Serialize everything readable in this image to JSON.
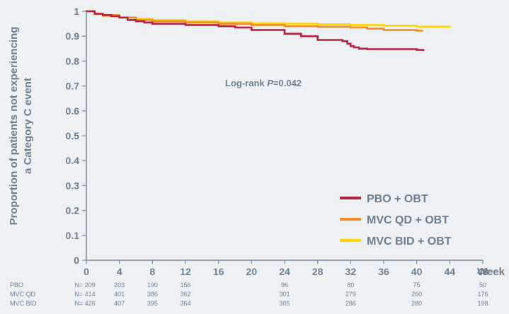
{
  "chart_data": {
    "type": "line",
    "step": true,
    "ylabel_lines": [
      "Proportion of patients not experiencing",
      "a Category C event"
    ],
    "xlabel": "Week",
    "xlim": [
      0,
      48
    ],
    "ylim": [
      0,
      1
    ],
    "x_ticks": [
      "0",
      "4",
      "8",
      "12",
      "16",
      "20",
      "24",
      "28",
      "32",
      "36",
      "40",
      "44",
      "48"
    ],
    "y_ticks": [
      "0",
      "0.1",
      "0.2",
      "0.3",
      "0.4",
      "0.5",
      "0.6",
      "0.7",
      "0.8",
      "0.9",
      "1"
    ],
    "annotation_prefix": "Log-rank ",
    "annotation_p": "P",
    "annotation_suffix": "=0.042",
    "legend_position": "bottom-right",
    "series": [
      {
        "name": "PBO + OBT",
        "color": "#b5203f",
        "x": [
          0,
          1,
          2,
          3,
          4,
          5,
          6,
          7,
          8,
          12,
          16,
          18,
          20,
          24,
          26,
          28,
          31,
          31.6,
          32,
          32.4,
          33,
          34,
          40,
          40.8
        ],
        "y": [
          1,
          0.99,
          0.985,
          0.98,
          0.975,
          0.965,
          0.96,
          0.955,
          0.95,
          0.945,
          0.94,
          0.935,
          0.925,
          0.91,
          0.9,
          0.885,
          0.88,
          0.87,
          0.86,
          0.855,
          0.85,
          0.848,
          0.845,
          0.84
        ]
      },
      {
        "name": "MVC QD + OBT",
        "color": "#f28c28",
        "x": [
          0,
          1,
          2,
          4,
          6,
          8,
          12,
          16,
          20,
          24,
          28,
          32,
          34,
          36,
          40,
          40.7
        ],
        "y": [
          1,
          0.99,
          0.985,
          0.975,
          0.965,
          0.96,
          0.955,
          0.95,
          0.945,
          0.94,
          0.938,
          0.935,
          0.93,
          0.925,
          0.922,
          0.92
        ]
      },
      {
        "name": "MVC BID + OBT",
        "color": "#ffd500",
        "x": [
          0,
          1,
          2,
          4,
          6,
          8,
          12,
          16,
          20,
          24,
          28,
          32,
          36,
          40,
          44
        ],
        "y": [
          1,
          0.99,
          0.98,
          0.975,
          0.97,
          0.965,
          0.96,
          0.955,
          0.952,
          0.95,
          0.948,
          0.945,
          0.942,
          0.938,
          0.935
        ]
      }
    ],
    "risk_table": {
      "rows": [
        {
          "label": "PBO",
          "values": [
            "N= 209",
            "203",
            "190",
            "156",
            "",
            "",
            "96",
            "",
            "80",
            "",
            "75",
            "",
            "50"
          ]
        },
        {
          "label": "MVC QD",
          "values": [
            "N= 414",
            "401",
            "386",
            "362",
            "",
            "",
            "301",
            "",
            "279",
            "",
            "260",
            "",
            "176"
          ]
        },
        {
          "label": "MVC BID",
          "values": [
            "N= 426",
            "407",
            "395",
            "364",
            "",
            "",
            "305",
            "",
            "286",
            "",
            "280",
            "",
            "198"
          ]
        }
      ]
    }
  }
}
